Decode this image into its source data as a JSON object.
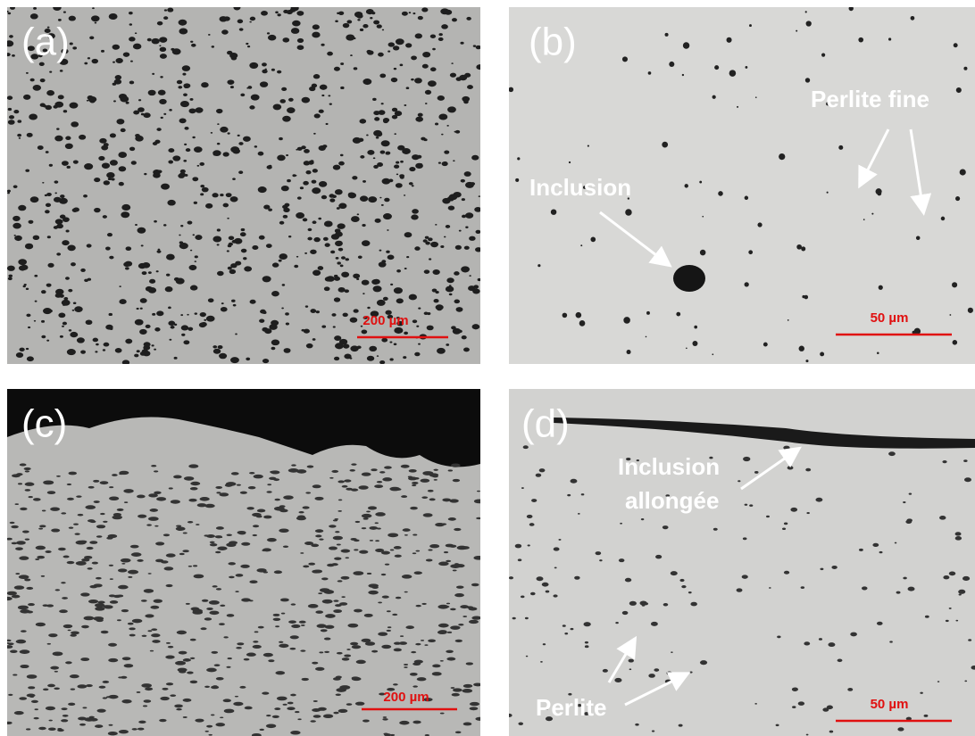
{
  "panels": [
    {
      "label": "(a)",
      "scale_bar": "200 µm"
    },
    {
      "label": "(b)",
      "scale_bar": "50 µm",
      "annotations": [
        "Inclusion",
        "Perlite fine"
      ]
    },
    {
      "label": "(c)",
      "scale_bar": "200 µm"
    },
    {
      "label": "(d)",
      "scale_bar": "50 µm",
      "annotations": [
        "Inclusion",
        "allongée",
        "Perlite"
      ]
    }
  ]
}
